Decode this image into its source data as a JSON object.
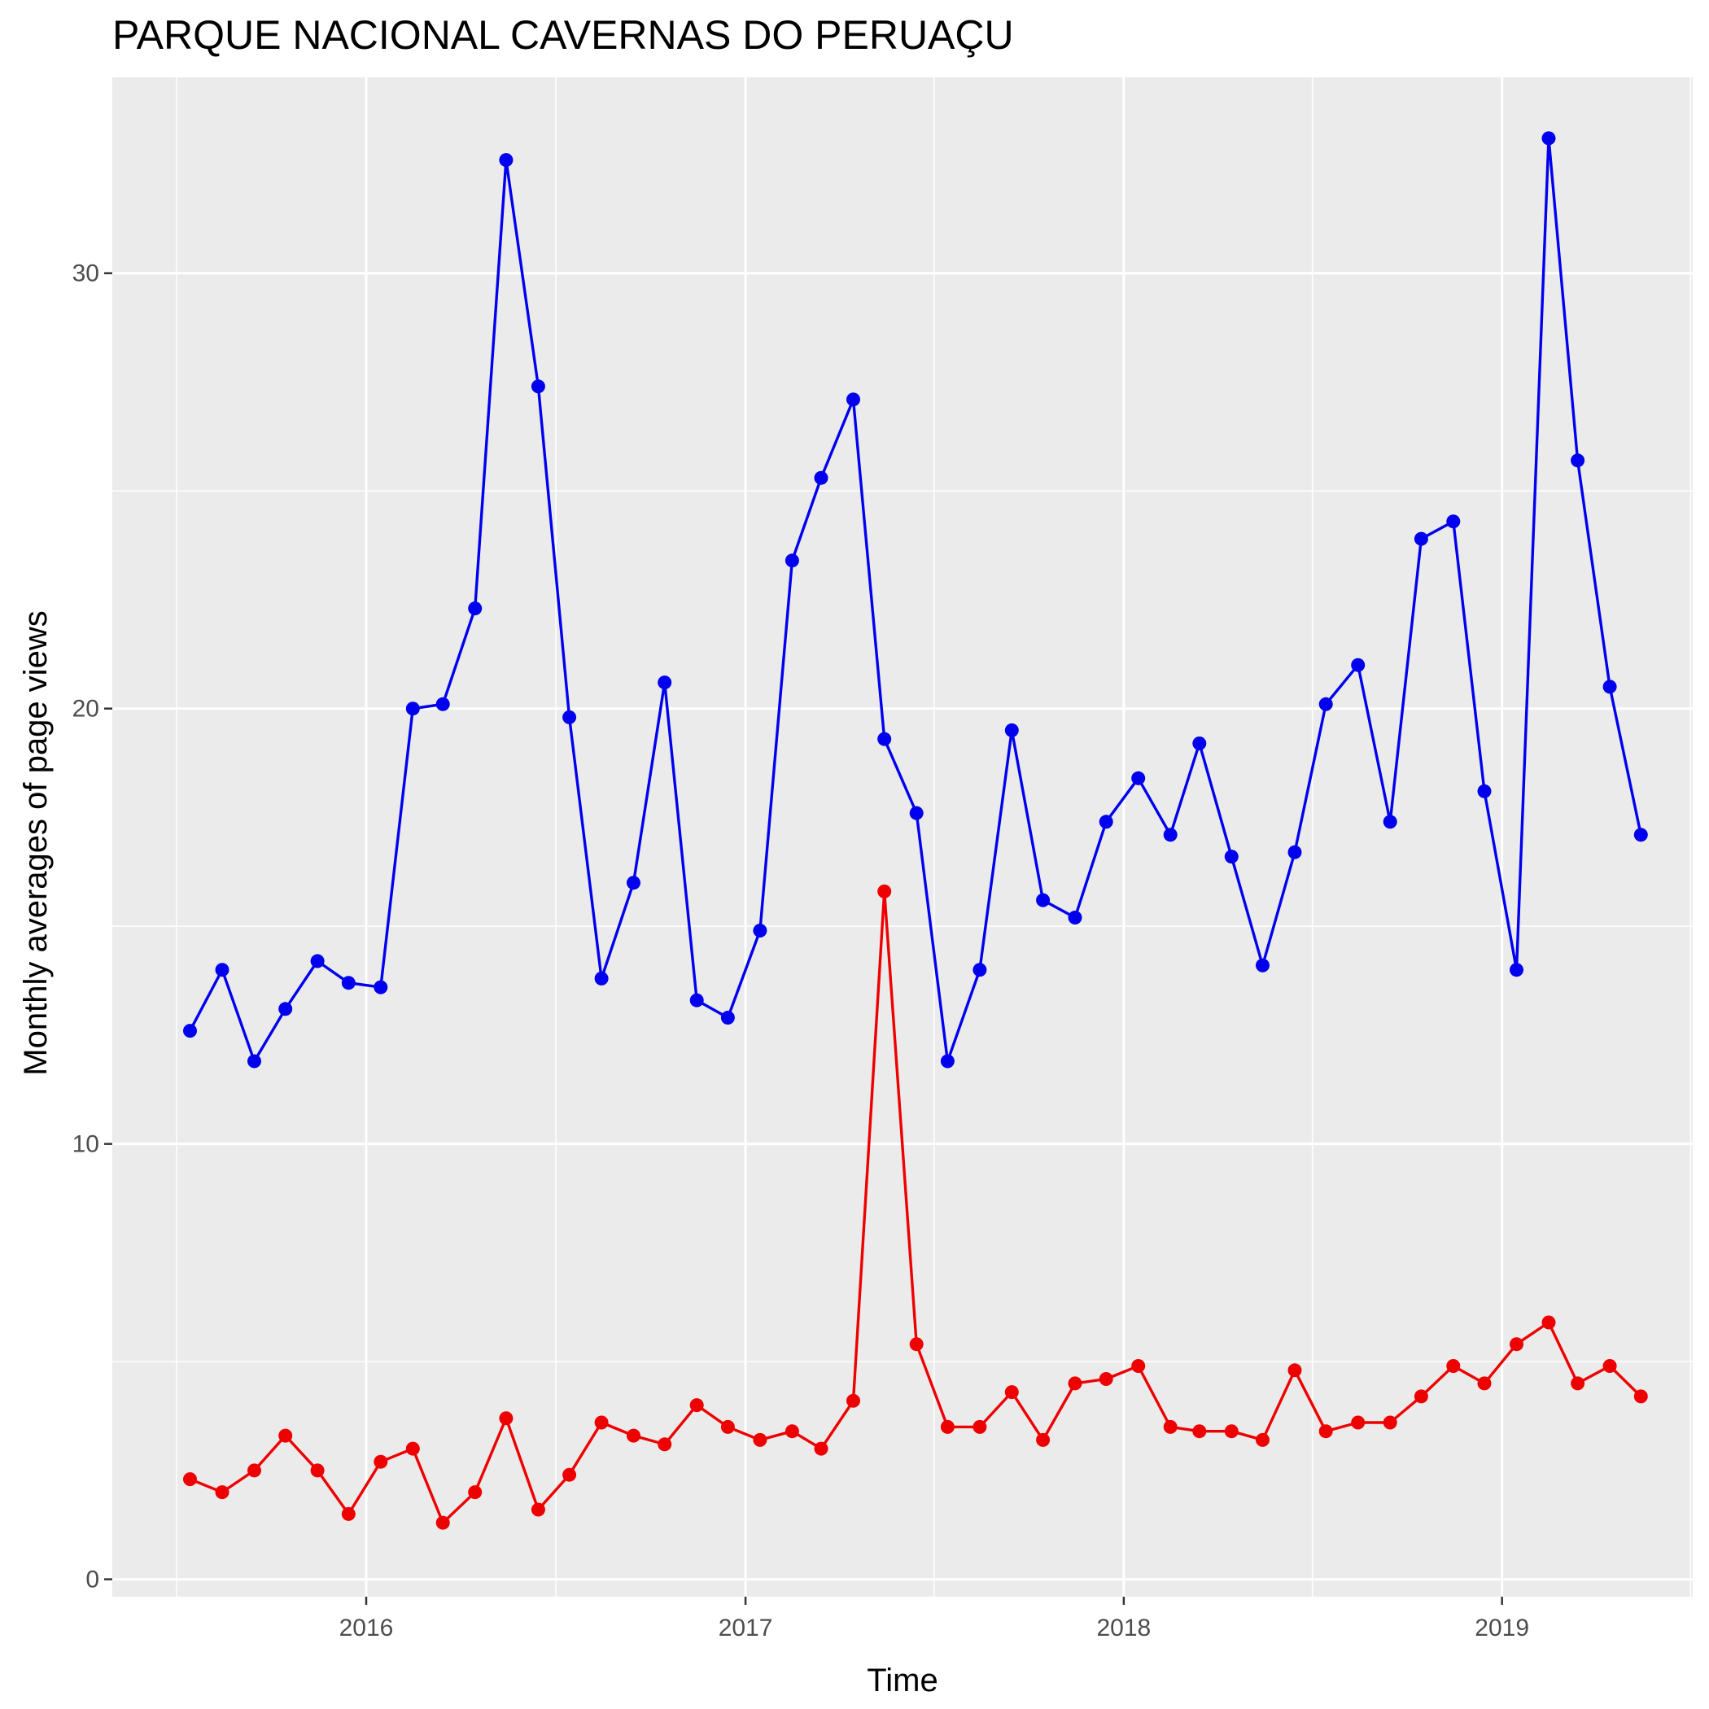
{
  "chart_data": {
    "type": "line",
    "title": "PARQUE NACIONAL CAVERNAS DO PERUAÇU",
    "xlabel": "Time",
    "ylabel": "Monthly averages of page views",
    "x_ticks": [
      "2016",
      "2017",
      "2018",
      "2019"
    ],
    "y_ticks": [
      0,
      10,
      20,
      30
    ],
    "ylim": [
      -0.4,
      34.5
    ],
    "xlim": [
      "2015-05-01",
      "2019-07-04"
    ],
    "grid": true,
    "panel_background": "#ebebeb",
    "x": [
      "2015-07",
      "2015-08",
      "2015-09",
      "2015-10",
      "2015-11",
      "2015-12",
      "2016-01",
      "2016-02",
      "2016-03",
      "2016-04",
      "2016-05",
      "2016-06",
      "2016-07",
      "2016-08",
      "2016-09",
      "2016-10",
      "2016-11",
      "2016-12",
      "2017-01",
      "2017-02",
      "2017-03",
      "2017-04",
      "2017-05",
      "2017-06",
      "2017-07",
      "2017-08",
      "2017-09",
      "2017-10",
      "2017-11",
      "2017-12",
      "2018-01",
      "2018-02",
      "2018-03",
      "2018-04",
      "2018-05",
      "2018-06",
      "2018-07",
      "2018-08",
      "2018-09",
      "2018-10",
      "2018-11",
      "2018-12",
      "2019-01",
      "2019-02",
      "2019-03",
      "2019-04",
      "2019-05"
    ],
    "series": [
      {
        "color": "#0000ee",
        "values": [
          12.6,
          14.0,
          11.9,
          13.1,
          14.2,
          13.7,
          13.6,
          20.0,
          20.1,
          22.3,
          32.6,
          27.4,
          19.8,
          13.8,
          16.0,
          20.6,
          13.3,
          12.9,
          14.9,
          23.4,
          25.3,
          27.1,
          19.3,
          17.6,
          11.9,
          14.0,
          19.5,
          15.6,
          15.2,
          17.4,
          18.4,
          17.1,
          19.2,
          16.6,
          14.1,
          16.7,
          20.1,
          21.0,
          17.4,
          23.9,
          24.3,
          18.1,
          14.0,
          33.1,
          25.7,
          20.5,
          17.1
        ]
      },
      {
        "color": "#ee0000",
        "values": [
          2.3,
          2.0,
          2.5,
          3.3,
          2.5,
          1.5,
          2.7,
          3.0,
          1.3,
          2.0,
          3.7,
          1.6,
          2.4,
          3.6,
          3.3,
          3.1,
          4.0,
          3.5,
          3.2,
          3.4,
          3.0,
          4.1,
          15.8,
          5.4,
          3.5,
          3.5,
          4.3,
          3.2,
          4.5,
          4.6,
          4.9,
          3.5,
          3.4,
          3.4,
          3.2,
          4.8,
          3.4,
          3.6,
          3.6,
          4.2,
          4.9,
          4.5,
          5.4,
          5.9,
          4.5,
          4.9,
          4.2
        ]
      }
    ]
  }
}
